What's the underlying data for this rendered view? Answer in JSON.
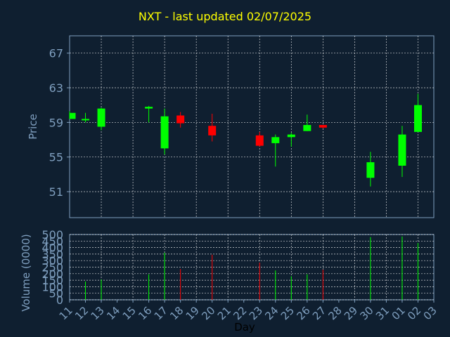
{
  "title": "NXT - last updated 02/07/2025",
  "colors": {
    "background": "#0f1f30",
    "axis": "#7f9fbf",
    "grid": "#ffffff",
    "title": "#ffff00",
    "up": "#00ff00",
    "down": "#ff0000"
  },
  "chart_data": [
    {
      "type": "candlestick",
      "ylabel": "Price",
      "ylim": [
        48,
        69
      ],
      "yticks": [
        51,
        55,
        59,
        63,
        67
      ],
      "grid": true,
      "x_ticks": [
        "11",
        "12",
        "13",
        "14",
        "15",
        "16",
        "17",
        "18",
        "19",
        "20",
        "21",
        "22",
        "23",
        "24",
        "25",
        "26",
        "27",
        "28",
        "29",
        "30",
        "31",
        "01",
        "02",
        "03"
      ],
      "candles": [
        {
          "x": "11",
          "open": 59.4,
          "high": 60.3,
          "low": 59.4,
          "close": 60.1
        },
        {
          "x": "12",
          "open": 59.3,
          "high": 60.1,
          "low": 59.0,
          "close": 59.4
        },
        {
          "x": "13",
          "open": 58.5,
          "high": 60.7,
          "low": 58.1,
          "close": 60.6
        },
        {
          "x": "16",
          "open": 60.6,
          "high": 60.9,
          "low": 59.0,
          "close": 60.8
        },
        {
          "x": "17",
          "open": 56.0,
          "high": 60.6,
          "low": 55.3,
          "close": 59.7
        },
        {
          "x": "18",
          "open": 59.8,
          "high": 60.2,
          "low": 58.4,
          "close": 58.9
        },
        {
          "x": "20",
          "open": 58.6,
          "high": 60.0,
          "low": 56.8,
          "close": 57.5
        },
        {
          "x": "23",
          "open": 57.5,
          "high": 57.9,
          "low": 56.2,
          "close": 56.3
        },
        {
          "x": "24",
          "open": 56.6,
          "high": 57.6,
          "low": 53.9,
          "close": 57.3
        },
        {
          "x": "25",
          "open": 57.3,
          "high": 57.8,
          "low": 56.2,
          "close": 57.6
        },
        {
          "x": "26",
          "open": 58.0,
          "high": 59.9,
          "low": 58.0,
          "close": 58.7
        },
        {
          "x": "27",
          "open": 58.7,
          "high": 58.7,
          "low": 58.3,
          "close": 58.4
        },
        {
          "x": "30",
          "open": 52.6,
          "high": 55.6,
          "low": 51.6,
          "close": 54.4
        },
        {
          "x": "01",
          "open": 54.0,
          "high": 58.6,
          "low": 52.7,
          "close": 57.6
        },
        {
          "x": "02",
          "open": 57.9,
          "high": 62.3,
          "low": 57.9,
          "close": 61.0
        }
      ]
    },
    {
      "type": "bar",
      "ylabel": "Volume (0000)",
      "xlabel": "Day",
      "ylim": [
        0,
        500
      ],
      "yticks": [
        0,
        50,
        100,
        150,
        200,
        250,
        300,
        350,
        400,
        450,
        500
      ],
      "grid": true,
      "x_ticks": [
        "11",
        "12",
        "13",
        "14",
        "15",
        "16",
        "17",
        "18",
        "19",
        "20",
        "21",
        "22",
        "23",
        "24",
        "25",
        "26",
        "27",
        "28",
        "29",
        "30",
        "31",
        "01",
        "02",
        "03"
      ],
      "bars": [
        {
          "x": "12",
          "value": 140,
          "direction": "up"
        },
        {
          "x": "13",
          "value": 155,
          "direction": "up"
        },
        {
          "x": "16",
          "value": 195,
          "direction": "up"
        },
        {
          "x": "17",
          "value": 360,
          "direction": "up"
        },
        {
          "x": "18",
          "value": 235,
          "direction": "down"
        },
        {
          "x": "20",
          "value": 345,
          "direction": "down"
        },
        {
          "x": "23",
          "value": 285,
          "direction": "down"
        },
        {
          "x": "24",
          "value": 225,
          "direction": "up"
        },
        {
          "x": "25",
          "value": 180,
          "direction": "up"
        },
        {
          "x": "26",
          "value": 195,
          "direction": "up"
        },
        {
          "x": "27",
          "value": 230,
          "direction": "down"
        },
        {
          "x": "30",
          "value": 480,
          "direction": "up"
        },
        {
          "x": "01",
          "value": 485,
          "direction": "up"
        },
        {
          "x": "02",
          "value": 435,
          "direction": "up"
        }
      ]
    }
  ]
}
